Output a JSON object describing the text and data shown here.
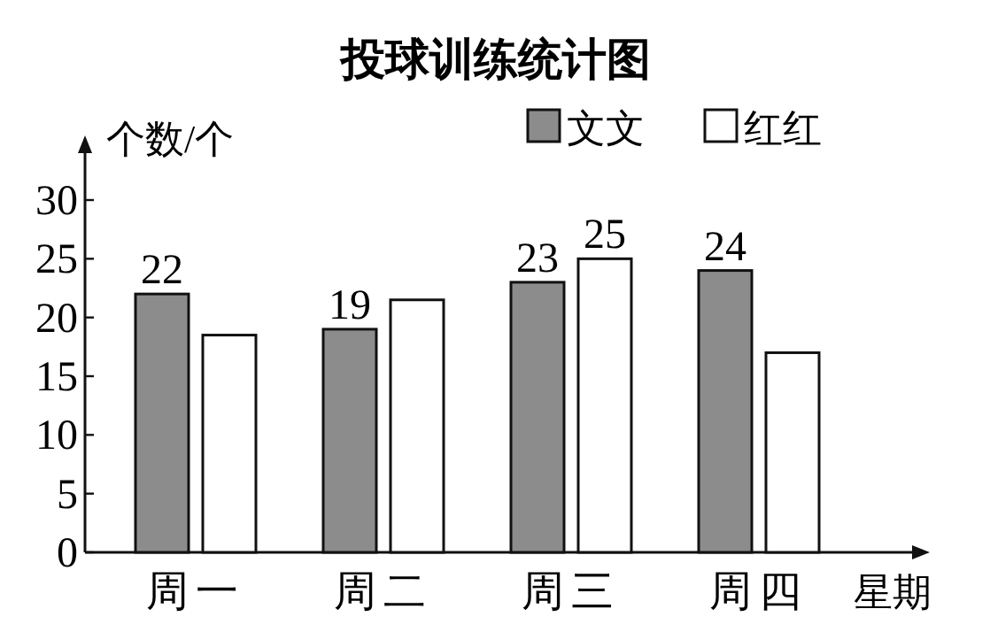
{
  "chart_data": {
    "type": "bar",
    "title": "投球训练统计图",
    "ylabel": "个数/个",
    "xlabel": "星期",
    "categories": [
      "周一",
      "周二",
      "周三",
      "周四"
    ],
    "series": [
      {
        "name": "文文",
        "color": "#8c8c8c",
        "values": [
          22,
          19,
          23,
          24
        ],
        "value_labels": [
          "22",
          "19",
          "23",
          "24"
        ]
      },
      {
        "name": "红红",
        "color": "#ffffff",
        "values": [
          18.5,
          21.5,
          25,
          17
        ],
        "value_labels": [
          null,
          null,
          "25",
          null
        ]
      }
    ],
    "ylim": [
      0,
      34
    ],
    "yticks": [
      0,
      5,
      10,
      15,
      20,
      25,
      30
    ],
    "grid": false,
    "legend": "top right"
  }
}
